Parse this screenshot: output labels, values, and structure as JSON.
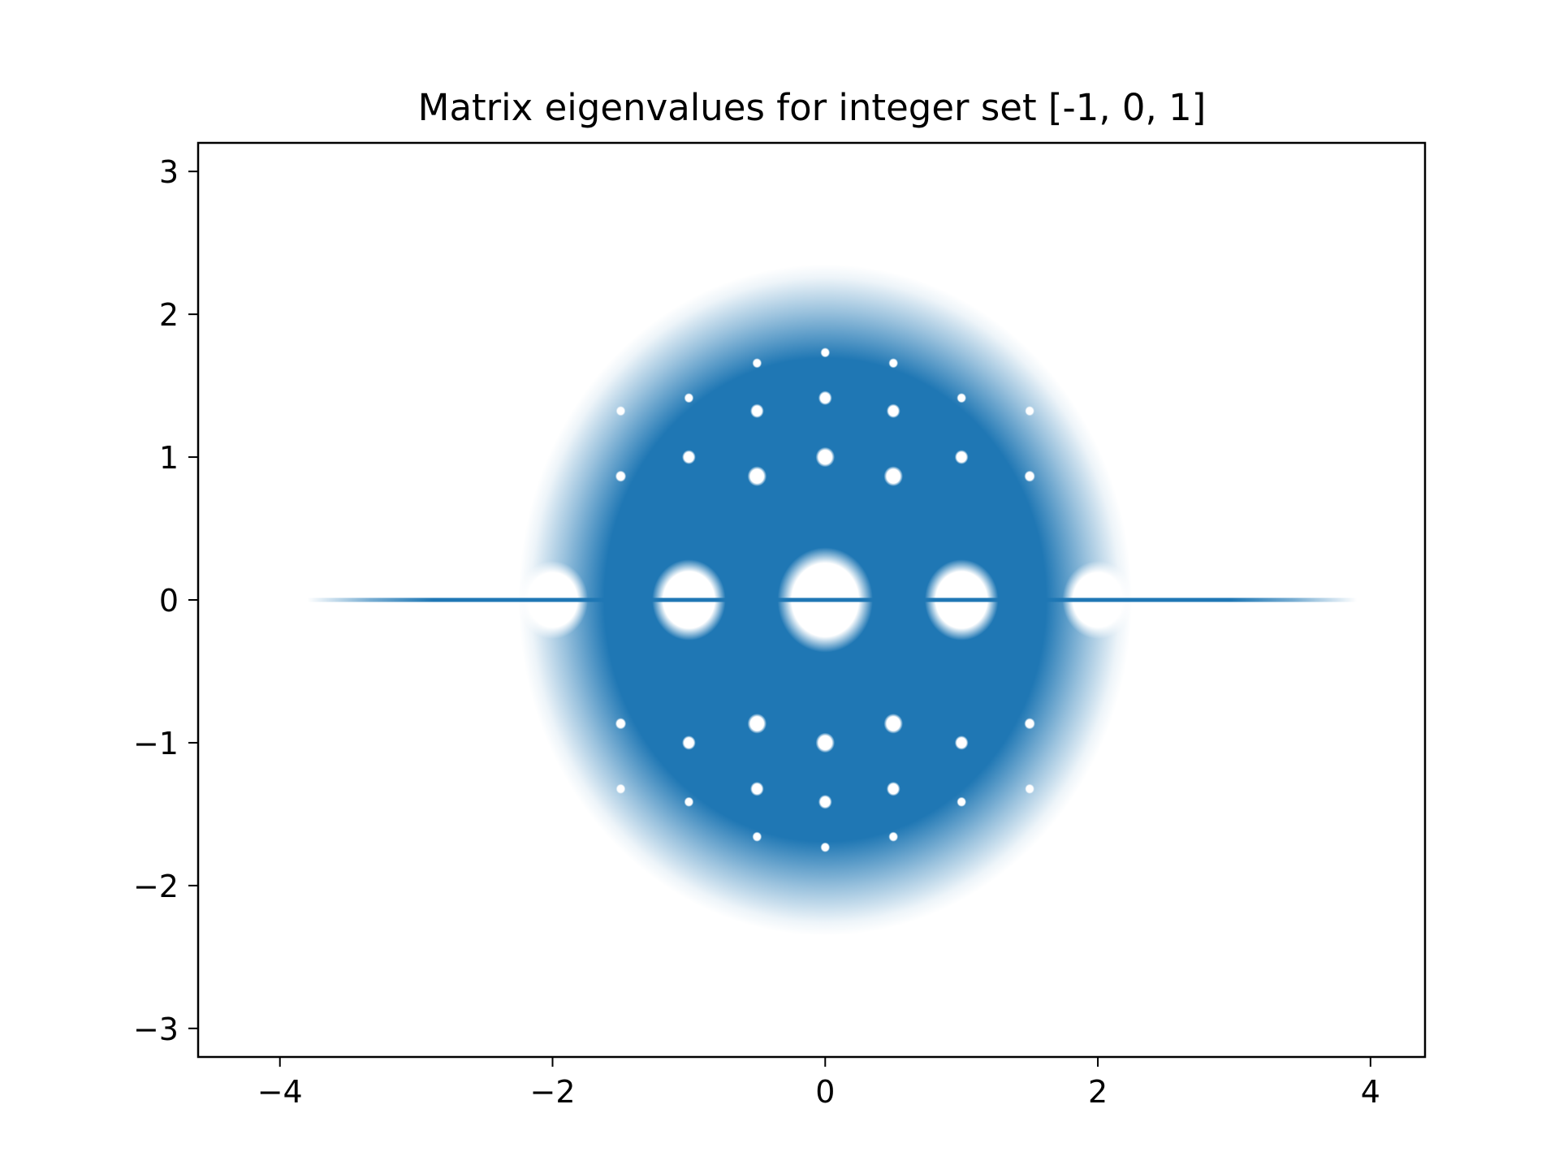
{
  "chart_data": {
    "type": "scatter",
    "title": "Matrix eigenvalues for integer set [-1, 0, 1]",
    "xlabel": "",
    "ylabel": "",
    "xlim": [
      -4.6,
      4.4
    ],
    "ylim": [
      -3.2,
      3.2
    ],
    "grid": false,
    "legend": "none",
    "x_ticks": [
      {
        "value": -4,
        "label": "−4"
      },
      {
        "value": -2,
        "label": "−2"
      },
      {
        "value": 0,
        "label": "0"
      },
      {
        "value": 2,
        "label": "2"
      },
      {
        "value": 4,
        "label": "4"
      }
    ],
    "y_ticks": [
      {
        "value": -3,
        "label": "−3"
      },
      {
        "value": -2,
        "label": "−2"
      },
      {
        "value": -1,
        "label": "−1"
      },
      {
        "value": 0,
        "label": "0"
      },
      {
        "value": 1,
        "label": "1"
      },
      {
        "value": 2,
        "label": "2"
      },
      {
        "value": 3,
        "label": "3"
      }
    ],
    "point_color": "#1f77b4",
    "real_axis_band": {
      "x_range": [
        -3.8,
        3.9
      ],
      "y": 0
    },
    "dense_region": {
      "shape": "disk",
      "center": [
        0,
        0
      ],
      "radius_real": 2.25,
      "radius_imag": 2.35,
      "gap_holes": [
        {
          "x": -2,
          "y": 0,
          "r": 0.26
        },
        {
          "x": -1,
          "y": 0,
          "r": 0.27
        },
        {
          "x": 0,
          "y": 0,
          "r": 0.35
        },
        {
          "x": 1,
          "y": 0,
          "r": 0.27
        },
        {
          "x": 2,
          "y": 0,
          "r": 0.26
        }
      ]
    },
    "holes": [
      {
        "x": 0,
        "y": 1,
        "r": 0.07
      },
      {
        "x": -0.5,
        "y": 0.866,
        "r": 0.07
      },
      {
        "x": 0.5,
        "y": 0.866,
        "r": 0.07
      },
      {
        "x": -1,
        "y": 1,
        "r": 0.05
      },
      {
        "x": 1,
        "y": 1,
        "r": 0.05
      },
      {
        "x": 0,
        "y": 1.414,
        "r": 0.05
      },
      {
        "x": -0.5,
        "y": 1.323,
        "r": 0.05
      },
      {
        "x": 0.5,
        "y": 1.323,
        "r": 0.05
      },
      {
        "x": -1,
        "y": 1.414,
        "r": 0.035
      },
      {
        "x": 1,
        "y": 1.414,
        "r": 0.035
      },
      {
        "x": -1.5,
        "y": 0.866,
        "r": 0.04
      },
      {
        "x": 1.5,
        "y": 0.866,
        "r": 0.04
      },
      {
        "x": -1.5,
        "y": 1.323,
        "r": 0.035
      },
      {
        "x": 1.5,
        "y": 1.323,
        "r": 0.035
      },
      {
        "x": 0,
        "y": 1.732,
        "r": 0.035
      },
      {
        "x": -0.5,
        "y": 1.658,
        "r": 0.035
      },
      {
        "x": 0.5,
        "y": 1.658,
        "r": 0.035
      },
      {
        "x": 0,
        "y": -1,
        "r": 0.07
      },
      {
        "x": -0.5,
        "y": -0.866,
        "r": 0.07
      },
      {
        "x": 0.5,
        "y": -0.866,
        "r": 0.07
      },
      {
        "x": -1,
        "y": -1,
        "r": 0.05
      },
      {
        "x": 1,
        "y": -1,
        "r": 0.05
      },
      {
        "x": 0,
        "y": -1.414,
        "r": 0.05
      },
      {
        "x": -0.5,
        "y": -1.323,
        "r": 0.05
      },
      {
        "x": 0.5,
        "y": -1.323,
        "r": 0.05
      },
      {
        "x": -1,
        "y": -1.414,
        "r": 0.035
      },
      {
        "x": 1,
        "y": -1.414,
        "r": 0.035
      },
      {
        "x": -1.5,
        "y": -0.866,
        "r": 0.04
      },
      {
        "x": 1.5,
        "y": -0.866,
        "r": 0.04
      },
      {
        "x": -1.5,
        "y": -1.323,
        "r": 0.035
      },
      {
        "x": 1.5,
        "y": -1.323,
        "r": 0.035
      },
      {
        "x": 0,
        "y": -1.732,
        "r": 0.035
      },
      {
        "x": -0.5,
        "y": -1.658,
        "r": 0.035
      },
      {
        "x": 0.5,
        "y": -1.658,
        "r": 0.035
      }
    ]
  }
}
